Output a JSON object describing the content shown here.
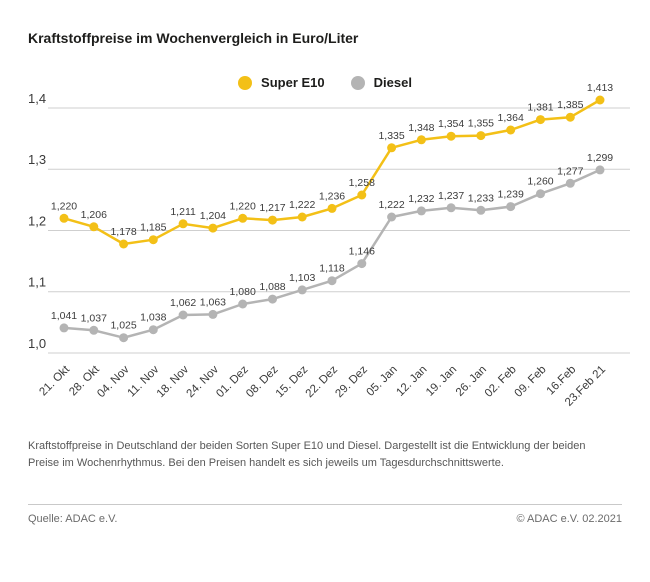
{
  "header": {
    "title": "Kraftstoffpreise im Wochenvergleich in Euro/Liter"
  },
  "chart_data": {
    "type": "line",
    "title": "Kraftstoffpreise im Wochenvergleich in Euro/Liter",
    "categories": [
      "21. Okt",
      "28. Okt",
      "04. Nov",
      "11. Nov",
      "18. Nov",
      "24. Nov",
      "01. Dez",
      "08. Dez",
      "15. Dez",
      "22. Dez",
      "29. Dez",
      "05. Jan",
      "12. Jan",
      "19. Jan",
      "26. Jan",
      "02. Feb",
      "09. Feb",
      "16.Feb",
      "23.Feb 21"
    ],
    "series": [
      {
        "name": "Super E10",
        "color": "#F3C017",
        "values": [
          1.22,
          1.206,
          1.178,
          1.185,
          1.211,
          1.204,
          1.22,
          1.217,
          1.222,
          1.236,
          1.258,
          1.335,
          1.348,
          1.354,
          1.355,
          1.364,
          1.381,
          1.385,
          1.413
        ]
      },
      {
        "name": "Diesel",
        "color": "#B4B4B4",
        "values": [
          1.041,
          1.037,
          1.025,
          1.038,
          1.062,
          1.063,
          1.08,
          1.088,
          1.103,
          1.118,
          1.146,
          1.222,
          1.232,
          1.237,
          1.233,
          1.239,
          1.26,
          1.277,
          1.299
        ]
      }
    ],
    "xlabel": "",
    "ylabel": "",
    "ylim": [
      1.0,
      1.4
    ],
    "yticks": [
      1.0,
      1.1,
      1.2,
      1.3,
      1.4
    ],
    "grid": true,
    "legend_position": "top-center",
    "value_labels": true,
    "decimal_separator": ","
  },
  "footer": {
    "note": "Kraftstoffpreise in Deutschland der beiden Sorten Super E10 und Diesel. Dargestellt ist die Entwicklung der beiden Preise im Wochenrhythmus. Bei den Preisen handelt es sich jeweils um Tagesdurchschnittswerte.",
    "source": "Quelle: ADAC e.V.",
    "copyright": "© ADAC e.V. 02.2021"
  }
}
